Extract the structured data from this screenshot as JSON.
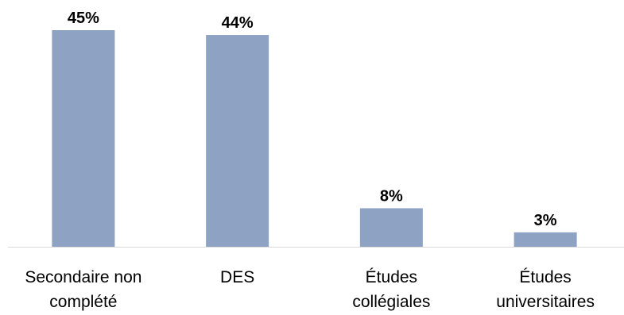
{
  "chart_data": {
    "type": "bar",
    "categories": [
      [
        "Secondaire non",
        "complété"
      ],
      [
        "DES"
      ],
      [
        "Études",
        "collégiales"
      ],
      [
        "Études",
        "universitaires"
      ]
    ],
    "values": [
      45,
      44,
      8,
      3
    ],
    "data_labels": [
      "45%",
      "44%",
      "8%",
      "3%"
    ],
    "unit": "%",
    "ylim": [
      0,
      45
    ],
    "bar_color": "#8ea3c4",
    "title": "",
    "xlabel": "",
    "ylabel": "",
    "grid": false,
    "legend": "none"
  }
}
